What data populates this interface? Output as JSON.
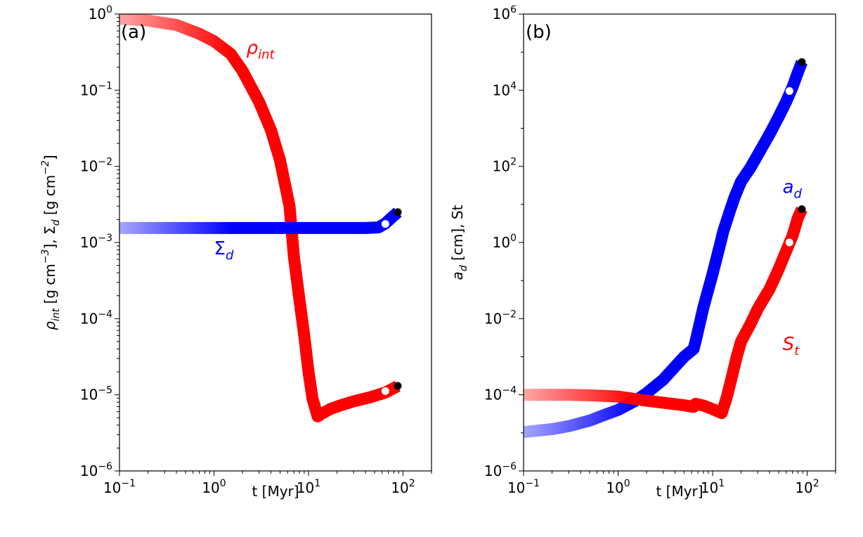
{
  "chart_data": [
    {
      "panel": "(a)",
      "type": "line",
      "xlabel": "t [Myr]",
      "ylabel": "ρint [g cm−3], Σd [g cm−2]",
      "xscale": "log",
      "yscale": "log",
      "xlim": [
        0.1,
        200
      ],
      "ylim": [
        1e-06,
        1
      ],
      "xticks": [
        {
          "v": 0.1,
          "base": "10",
          "exp": "−1"
        },
        {
          "v": 1,
          "base": "10",
          "exp": "0"
        },
        {
          "v": 10,
          "base": "10",
          "exp": "1"
        },
        {
          "v": 100,
          "base": "10",
          "exp": "2"
        }
      ],
      "yticks": [
        {
          "v": 1e-06,
          "base": "10",
          "exp": "−6"
        },
        {
          "v": 1e-05,
          "base": "10",
          "exp": "−5"
        },
        {
          "v": 0.0001,
          "base": "10",
          "exp": "−4"
        },
        {
          "v": 0.001,
          "base": "10",
          "exp": "−3"
        },
        {
          "v": 0.01,
          "base": "10",
          "exp": "−2"
        },
        {
          "v": 0.1,
          "base": "10",
          "exp": "−1"
        },
        {
          "v": 1,
          "base": "10",
          "exp": "0"
        }
      ],
      "series": [
        {
          "name": "ρint",
          "color": "#ff0000",
          "points": [
            [
              0.1,
              0.87
            ],
            [
              0.2,
              0.82
            ],
            [
              0.4,
              0.72
            ],
            [
              0.7,
              0.55
            ],
            [
              1.0,
              0.44
            ],
            [
              1.5,
              0.3
            ],
            [
              2.0,
              0.18
            ],
            [
              3.0,
              0.07
            ],
            [
              4.0,
              0.03
            ],
            [
              5.0,
              0.012
            ],
            [
              6.3,
              0.003
            ],
            [
              7.0,
              0.00065
            ],
            [
              8.0,
              0.00018
            ],
            [
              9.0,
              6e-05
            ],
            [
              10.0,
              2e-05
            ],
            [
              11.0,
              9e-06
            ],
            [
              12.5,
              5.2e-06
            ],
            [
              14.0,
              5.7e-06
            ],
            [
              17.0,
              6.5e-06
            ],
            [
              22.0,
              7.3e-06
            ],
            [
              30.0,
              8.2e-06
            ],
            [
              45.0,
              9.3e-06
            ],
            [
              65.0,
              1.07e-05
            ],
            [
              88.0,
              1.3e-05
            ]
          ],
          "markers": [
            {
              "x": 65,
              "y": 1.12e-05,
              "color": "#ffffff"
            },
            {
              "x": 88,
              "y": 1.31e-05,
              "color": "#000000"
            }
          ]
        },
        {
          "name": "Σd",
          "color": "#0000ff",
          "points": [
            [
              0.1,
              0.00155
            ],
            [
              1.0,
              0.00155
            ],
            [
              10.0,
              0.00155
            ],
            [
              40.0,
              0.00155
            ],
            [
              55.0,
              0.00158
            ],
            [
              65.0,
              0.00178
            ],
            [
              75.0,
              0.0021
            ],
            [
              88.0,
              0.0025
            ]
          ],
          "markers": [
            {
              "x": 65,
              "y": 0.00175,
              "color": "#ffffff"
            },
            {
              "x": 88,
              "y": 0.0025,
              "color": "#000000"
            }
          ]
        }
      ],
      "annotations": [
        {
          "base": "ρ",
          "sub": "int",
          "color": "#ff0000",
          "x": 2.2,
          "y": 0.3
        },
        {
          "base": "Σ",
          "sub": "d",
          "color": "#0000ff",
          "x": 1.0,
          "y": 0.0007
        }
      ]
    },
    {
      "panel": "(b)",
      "type": "line",
      "xlabel": "t [Myr]",
      "ylabel": "ad [cm], St",
      "xscale": "log",
      "yscale": "log",
      "xlim": [
        0.1,
        200
      ],
      "ylim": [
        1e-06,
        1000000.0
      ],
      "xticks": [
        {
          "v": 0.1,
          "base": "10",
          "exp": "−1"
        },
        {
          "v": 1,
          "base": "10",
          "exp": "0"
        },
        {
          "v": 10,
          "base": "10",
          "exp": "1"
        },
        {
          "v": 100,
          "base": "10",
          "exp": "2"
        }
      ],
      "yticks": [
        {
          "v": 1e-06,
          "base": "10",
          "exp": "−6"
        },
        {
          "v": 0.0001,
          "base": "10",
          "exp": "−4"
        },
        {
          "v": 0.01,
          "base": "10",
          "exp": "−2"
        },
        {
          "v": 1,
          "base": "10",
          "exp": "0"
        },
        {
          "v": 100,
          "base": "10",
          "exp": "2"
        },
        {
          "v": 10000,
          "base": "10",
          "exp": "4"
        },
        {
          "v": 1000000,
          "base": "10",
          "exp": "6"
        }
      ],
      "series": [
        {
          "name": "ad",
          "color": "#0000ff",
          "points": [
            [
              0.1,
              1.05e-05
            ],
            [
              0.2,
              1.25e-05
            ],
            [
              0.3,
              1.5e-05
            ],
            [
              0.5,
              2.1e-05
            ],
            [
              0.7,
              2.9e-05
            ],
            [
              1.0,
              4e-05
            ],
            [
              1.5,
              6.8e-05
            ],
            [
              2.0,
              0.00011
            ],
            [
              3.0,
              0.00025
            ],
            [
              4.0,
              0.00055
            ],
            [
              5.0,
              0.001
            ],
            [
              6.3,
              0.0016
            ],
            [
              6.6,
              0.0025
            ],
            [
              8.0,
              0.02
            ],
            [
              10.0,
              0.15
            ],
            [
              12.0,
              0.9
            ],
            [
              13.0,
              2.0
            ],
            [
              15.0,
              6
            ],
            [
              17.0,
              15
            ],
            [
              20.0,
              40
            ],
            [
              25.0,
              90
            ],
            [
              30.0,
              200
            ],
            [
              40.0,
              700
            ],
            [
              50.0,
              2000
            ],
            [
              60.0,
              5000
            ],
            [
              70.0,
              12000
            ],
            [
              80.0,
              30000
            ],
            [
              88.0,
              55000
            ]
          ],
          "markers": [
            {
              "x": 65,
              "y": 9500,
              "color": "#ffffff"
            },
            {
              "x": 88,
              "y": 55000,
              "color": "#000000"
            }
          ]
        },
        {
          "name": "St",
          "color": "#ff0000",
          "points": [
            [
              0.1,
              0.0001
            ],
            [
              0.3,
              0.0001
            ],
            [
              0.5,
              9.7e-05
            ],
            [
              1.0,
              9e-05
            ],
            [
              2.0,
              7e-05
            ],
            [
              3.0,
              6.2e-05
            ],
            [
              5.0,
              5.3e-05
            ],
            [
              6.3,
              4.8e-05
            ],
            [
              6.6,
              5.8e-05
            ],
            [
              8.0,
              5.2e-05
            ],
            [
              10.0,
              4.2e-05
            ],
            [
              12.5,
              3.3e-05
            ],
            [
              14.0,
              8e-05
            ],
            [
              16.0,
              0.0003
            ],
            [
              18.0,
              0.001
            ],
            [
              20.0,
              0.0025
            ],
            [
              25.0,
              0.007
            ],
            [
              30.0,
              0.018
            ],
            [
              40.0,
              0.06
            ],
            [
              50.0,
              0.2
            ],
            [
              60.0,
              0.6
            ],
            [
              70.0,
              1.5
            ],
            [
              80.0,
              4.5
            ],
            [
              88.0,
              7.5
            ]
          ],
          "markers": [
            {
              "x": 65,
              "y": 1.0,
              "color": "#ffffff"
            },
            {
              "x": 88,
              "y": 7.5,
              "color": "#000000"
            }
          ]
        }
      ],
      "annotations": [
        {
          "base": "a",
          "sub": "d",
          "color": "#0000ff",
          "x": 55,
          "y": 20
        },
        {
          "base": "S",
          "sub": "t",
          "color": "#ff0000",
          "x": 55,
          "y": 0.0015
        }
      ]
    }
  ]
}
